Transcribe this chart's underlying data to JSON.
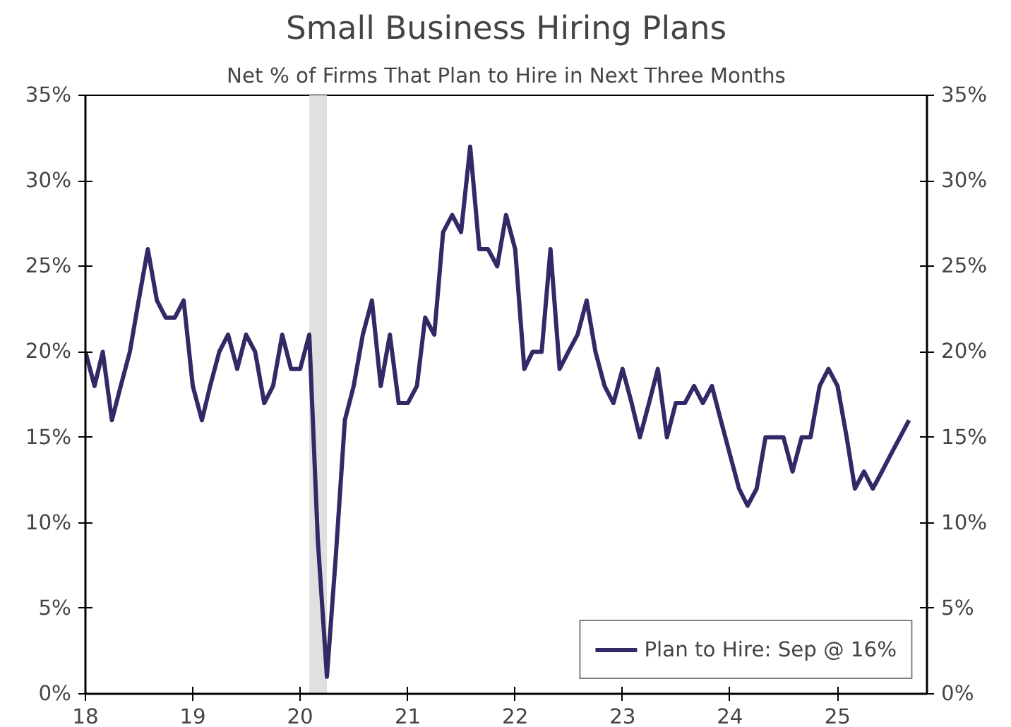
{
  "chart_data": {
    "type": "line",
    "title": "Small Business Hiring Plans",
    "subtitle": "Net % of Firms That Plan to Hire in Next Three Months",
    "x": [
      "2018-01",
      "2018-02",
      "2018-03",
      "2018-04",
      "2018-05",
      "2018-06",
      "2018-07",
      "2018-08",
      "2018-09",
      "2018-10",
      "2018-11",
      "2018-12",
      "2019-01",
      "2019-02",
      "2019-03",
      "2019-04",
      "2019-05",
      "2019-06",
      "2019-07",
      "2019-08",
      "2019-09",
      "2019-10",
      "2019-11",
      "2019-12",
      "2020-01",
      "2020-02",
      "2020-03",
      "2020-04",
      "2020-05",
      "2020-06",
      "2020-07",
      "2020-08",
      "2020-09",
      "2020-10",
      "2020-11",
      "2020-12",
      "2021-01",
      "2021-02",
      "2021-03",
      "2021-04",
      "2021-05",
      "2021-06",
      "2021-07",
      "2021-08",
      "2021-09",
      "2021-10",
      "2021-11",
      "2021-12",
      "2022-01",
      "2022-02",
      "2022-03",
      "2022-04",
      "2022-05",
      "2022-06",
      "2022-07",
      "2022-08",
      "2022-09",
      "2022-10",
      "2022-11",
      "2022-12",
      "2023-01",
      "2023-02",
      "2023-03",
      "2023-04",
      "2023-05",
      "2023-06",
      "2023-07",
      "2023-08",
      "2023-09",
      "2023-10",
      "2023-11",
      "2023-12",
      "2024-01",
      "2024-02",
      "2024-03",
      "2024-04",
      "2024-05",
      "2024-06",
      "2024-07",
      "2024-08",
      "2024-09",
      "2024-10",
      "2024-11",
      "2024-12",
      "2025-01",
      "2025-02",
      "2025-03",
      "2025-04",
      "2025-05",
      "2025-06",
      "2025-07",
      "2025-08",
      "2025-09"
    ],
    "series": [
      {
        "name": "Plan to Hire: Sep @ 16%",
        "color": "#332966",
        "values": [
          20,
          18,
          20,
          16,
          18,
          20,
          23,
          26,
          23,
          22,
          22,
          23,
          18,
          16,
          18,
          20,
          21,
          19,
          21,
          20,
          17,
          18,
          21,
          19,
          19,
          21,
          9,
          1,
          8,
          16,
          18,
          21,
          23,
          18,
          21,
          17,
          17,
          18,
          22,
          21,
          27,
          28,
          27,
          32,
          26,
          26,
          25,
          28,
          26,
          19,
          20,
          20,
          26,
          19,
          20,
          21,
          23,
          20,
          18,
          17,
          19,
          17,
          15,
          17,
          19,
          15,
          17,
          17,
          18,
          17,
          18,
          16,
          14,
          12,
          11,
          12,
          15,
          15,
          15,
          13,
          15,
          15,
          18,
          19,
          18,
          15,
          12,
          13,
          12,
          13,
          14,
          15,
          16
        ]
      }
    ],
    "xlim": [
      "2018-01",
      "2025-11"
    ],
    "xticks": [
      {
        "value": "2018-01",
        "label": "18"
      },
      {
        "value": "2019-01",
        "label": "19"
      },
      {
        "value": "2020-01",
        "label": "20"
      },
      {
        "value": "2021-01",
        "label": "21"
      },
      {
        "value": "2022-01",
        "label": "22"
      },
      {
        "value": "2023-01",
        "label": "23"
      },
      {
        "value": "2024-01",
        "label": "24"
      },
      {
        "value": "2025-01",
        "label": "25"
      }
    ],
    "ylim": [
      0,
      35
    ],
    "yticks": [
      {
        "value": 0,
        "label": "0%"
      },
      {
        "value": 5,
        "label": "5%"
      },
      {
        "value": 10,
        "label": "10%"
      },
      {
        "value": 15,
        "label": "15%"
      },
      {
        "value": 20,
        "label": "20%"
      },
      {
        "value": 25,
        "label": "25%"
      },
      {
        "value": 30,
        "label": "30%"
      },
      {
        "value": 35,
        "label": "35%"
      }
    ],
    "y2lim": [
      0,
      35
    ],
    "y2ticks": [
      {
        "value": 0,
        "label": "0%"
      },
      {
        "value": 5,
        "label": "5%"
      },
      {
        "value": 10,
        "label": "10%"
      },
      {
        "value": 15,
        "label": "15%"
      },
      {
        "value": 20,
        "label": "20%"
      },
      {
        "value": 25,
        "label": "25%"
      },
      {
        "value": 30,
        "label": "30%"
      },
      {
        "value": 35,
        "label": "35%"
      }
    ],
    "bands": [
      {
        "axis": "x",
        "from": "2020-02",
        "to": "2020-04",
        "color": "#e0e0e0"
      }
    ],
    "grid": false,
    "legend": "bottom right",
    "marker": "none",
    "line_style": "solid"
  }
}
